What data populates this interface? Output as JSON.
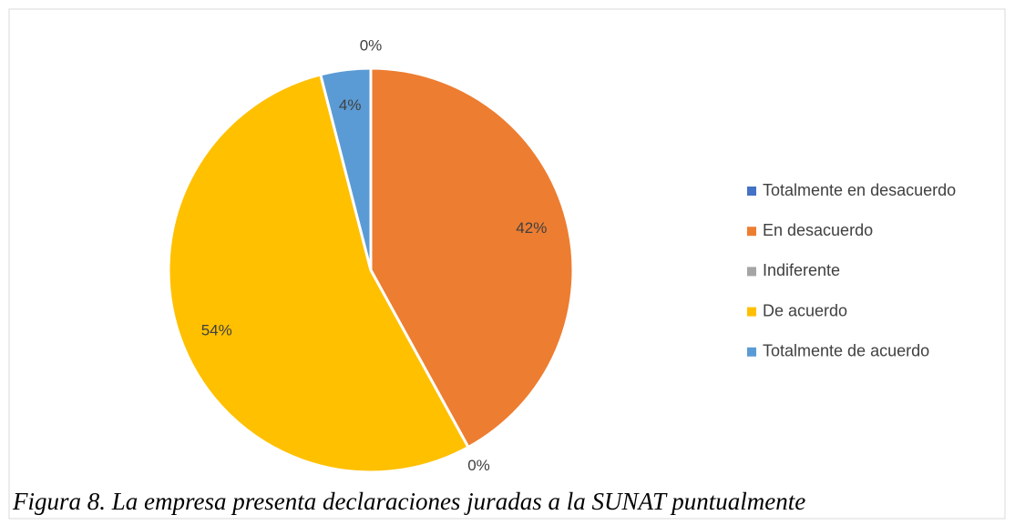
{
  "chart_data": {
    "type": "pie",
    "categories": [
      "Totalmente en desacuerdo",
      "En desacuerdo",
      "Indiferente",
      "De acuerdo",
      "Totalmente de acuerdo"
    ],
    "values": [
      0,
      42,
      0,
      54,
      4
    ],
    "value_labels": [
      "0%",
      "42%",
      "0%",
      "54%",
      "4%"
    ],
    "colors": [
      "#4472c4",
      "#ed7d31",
      "#a5a5a5",
      "#ffc000",
      "#5b9bd5"
    ],
    "legend": "right",
    "caption": "Figura 8. La empresa presenta declaraciones juradas a la SUNAT puntualmente"
  }
}
